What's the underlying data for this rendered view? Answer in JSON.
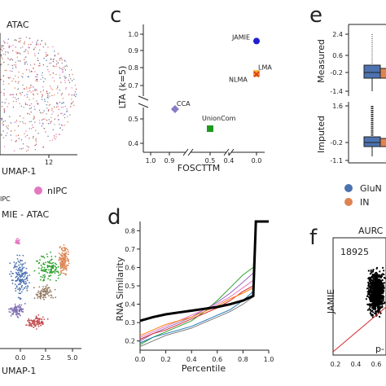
{
  "figure": {
    "panel_letters": {
      "c": "c",
      "d": "d",
      "e": "e",
      "f": "f"
    },
    "umap_top": {
      "title": "ATAC",
      "xlabel": "UMAP-1",
      "xticks": [
        "12"
      ]
    },
    "umap_bottom": {
      "title": "MIE - ATAC",
      "xlabel": "UMAP-1",
      "xticks": [
        "0.0",
        "2.5",
        "5.0"
      ]
    },
    "cell_legend": [
      {
        "label": "nIPC",
        "color": "#e377c2"
      },
      {
        "label": "IPC",
        "color": "#e377c2"
      }
    ],
    "violin_legend": [
      {
        "label": "GluN",
        "color": "#4c72b0"
      },
      {
        "label": "IN",
        "color": "#dd8452"
      }
    ],
    "panel_e": {
      "top_ylabel": "Measured",
      "top_yticks": [
        "2.4",
        "0.6",
        "-0.2",
        "-1.4"
      ],
      "bottom_ylabel": "Imputed",
      "bottom_yticks": [
        "1.6",
        "-0.2",
        "-1.1"
      ]
    },
    "panel_f": {
      "title": "AURC",
      "ylabel": "JAMIE",
      "count_label": "18925",
      "xticks": [
        "0.2",
        "0.4",
        "0.6"
      ],
      "annotation": "p-"
    }
  },
  "chart_data": [
    {
      "id": "c",
      "type": "scatter",
      "xlabel": "FOSCTTM",
      "ylabel": "LTA (k=5)",
      "xticks": [
        "1.0",
        "0.9",
        "0.5",
        "0.4",
        "0.0"
      ],
      "yticks": [
        "1.0",
        "0.9",
        "0.8",
        "0.7",
        "0.5",
        "0.4"
      ],
      "points": [
        {
          "label": "JAMIE",
          "x": 0.0,
          "y": 0.96,
          "color": "#1f1fcf",
          "marker": "circle"
        },
        {
          "label": "LMA",
          "x": 0.0,
          "y": 0.77,
          "color": "#f5a623",
          "marker": "square"
        },
        {
          "label": "NLMA",
          "x": 0.0,
          "y": 0.765,
          "color": "#e03a2a",
          "marker": "x"
        },
        {
          "label": "CCA",
          "x": 0.87,
          "y": 0.54,
          "color": "#8a7bc8",
          "marker": "diamond"
        },
        {
          "label": "UnionCom",
          "x": 0.5,
          "y": 0.46,
          "color": "#1f9a1f",
          "marker": "square"
        }
      ]
    },
    {
      "id": "d",
      "type": "line",
      "xlabel": "Percentile",
      "ylabel": "RNA Similarity",
      "xticks": [
        "0.0",
        "0.2",
        "0.4",
        "0.6",
        "0.8",
        "1.0"
      ],
      "yticks": [
        "0.2",
        "0.3",
        "0.4",
        "0.5",
        "0.6",
        "0.7",
        "0.8"
      ],
      "xlim": [
        0,
        1
      ],
      "ylim": [
        0.15,
        0.85
      ],
      "x": [
        0,
        0.1,
        0.2,
        0.3,
        0.4,
        0.5,
        0.6,
        0.7,
        0.8,
        0.88,
        0.9,
        0.92,
        1.0
      ],
      "series": [
        {
          "values": [
            0.31,
            0.33,
            0.345,
            0.355,
            0.365,
            0.375,
            0.385,
            0.4,
            0.42,
            0.445,
            0.85,
            0.85,
            0.85
          ],
          "color": "#000000",
          "width": 3
        },
        {
          "values": [
            0.18,
            0.22,
            0.25,
            0.28,
            0.31,
            0.36,
            0.42,
            0.49,
            0.56,
            0.6,
            0.85,
            0.85,
            0.85
          ],
          "color": "#2ca02c",
          "width": 1
        },
        {
          "values": [
            0.2,
            0.24,
            0.27,
            0.3,
            0.33,
            0.37,
            0.41,
            0.46,
            0.52,
            0.57,
            0.85,
            0.85,
            0.85
          ],
          "color": "#9467bd",
          "width": 1
        },
        {
          "values": [
            0.22,
            0.25,
            0.28,
            0.31,
            0.34,
            0.37,
            0.4,
            0.44,
            0.49,
            0.53,
            0.85,
            0.85,
            0.85
          ],
          "color": "#e377c2",
          "width": 1
        },
        {
          "values": [
            0.21,
            0.24,
            0.26,
            0.29,
            0.32,
            0.35,
            0.38,
            0.42,
            0.47,
            0.5,
            0.85,
            0.85,
            0.85
          ],
          "color": "#d62728",
          "width": 1
        },
        {
          "values": [
            0.19,
            0.22,
            0.24,
            0.26,
            0.28,
            0.31,
            0.34,
            0.37,
            0.42,
            0.47,
            0.85,
            0.85,
            0.85
          ],
          "color": "#1f77b4",
          "width": 1
        },
        {
          "values": [
            0.23,
            0.26,
            0.29,
            0.31,
            0.33,
            0.36,
            0.39,
            0.43,
            0.46,
            0.49,
            0.85,
            0.85,
            0.85
          ],
          "color": "#ff7f0e",
          "width": 1
        },
        {
          "values": [
            0.17,
            0.2,
            0.23,
            0.25,
            0.27,
            0.3,
            0.33,
            0.36,
            0.4,
            0.44,
            0.85,
            0.85,
            0.85
          ],
          "color": "#7f7f7f",
          "width": 1
        }
      ]
    }
  ]
}
